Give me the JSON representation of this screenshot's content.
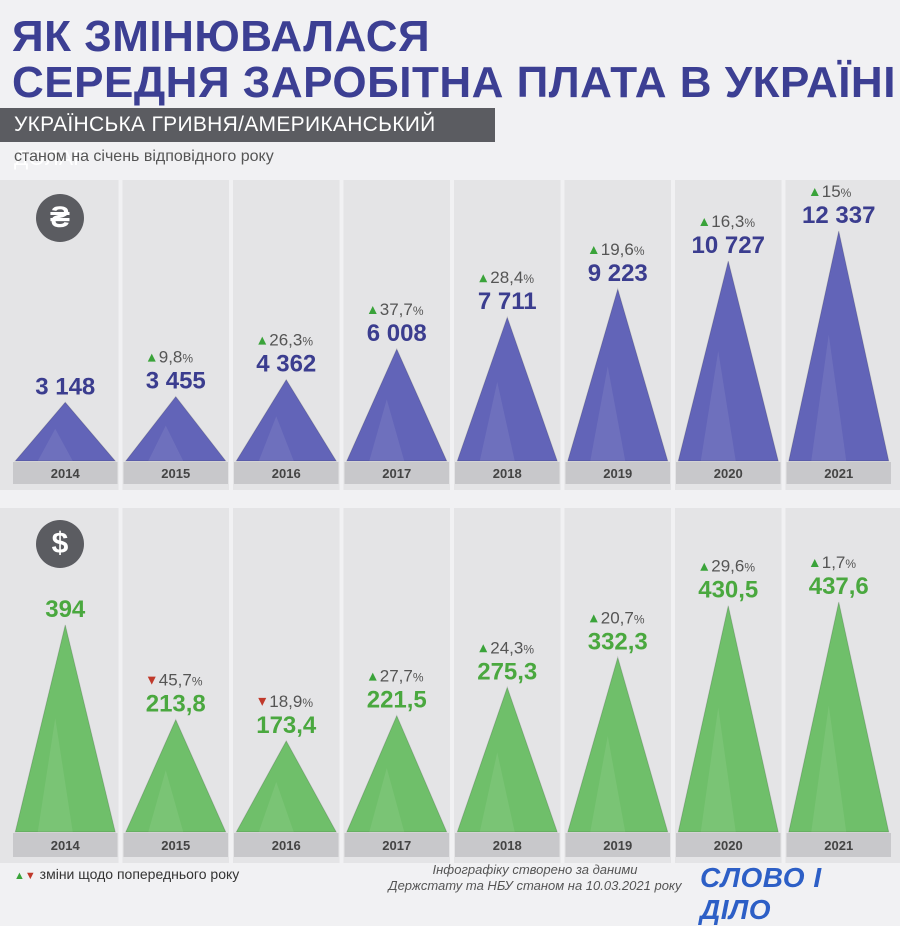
{
  "header": {
    "title_line1": "ЯК ЗМІНЮВАЛАСЯ",
    "title_line2": "СЕРЕДНЯ ЗАРОБІТНА ПЛАТА В УКРАЇНІ",
    "subtitle": "УКРАЇНСЬКА ГРИВНЯ/АМЕРИКАНСЬКИЙ ДОЛАР",
    "note": "станом на січень відповідного року"
  },
  "icons": {
    "uah": "₴",
    "usd": "$"
  },
  "chart_data": [
    {
      "type": "bar",
      "bar_shape": "triangle",
      "currency_symbol": "₴",
      "categories": [
        "2014",
        "2015",
        "2016",
        "2017",
        "2018",
        "2019",
        "2020",
        "2021"
      ],
      "values": [
        3148,
        3455,
        4362,
        6008,
        7711,
        9223,
        10727,
        12337
      ],
      "value_labels": [
        "3 148",
        "3 455",
        "4 362",
        "6 008",
        "7 711",
        "9 223",
        "10 727",
        "12 337"
      ],
      "changes": [
        null,
        {
          "dir": "up",
          "value": "9,8"
        },
        {
          "dir": "up",
          "value": "26,3"
        },
        {
          "dir": "up",
          "value": "37,7"
        },
        {
          "dir": "up",
          "value": "28,4"
        },
        {
          "dir": "up",
          "value": "19,6"
        },
        {
          "dir": "up",
          "value": "16,3"
        },
        {
          "dir": "up",
          "value": "15"
        }
      ],
      "color": "#6264b8",
      "label_color": "#3b3d8f"
    },
    {
      "type": "bar",
      "bar_shape": "triangle",
      "currency_symbol": "$",
      "categories": [
        "2014",
        "2015",
        "2016",
        "2017",
        "2018",
        "2019",
        "2020",
        "2021"
      ],
      "values": [
        394,
        213.8,
        173.4,
        221.5,
        275.3,
        332.3,
        430.5,
        437.6
      ],
      "value_labels": [
        "394",
        "213,8",
        "173,4",
        "221,5",
        "275,3",
        "332,3",
        "430,5",
        "437,6"
      ],
      "changes": [
        null,
        {
          "dir": "down",
          "value": "45,7"
        },
        {
          "dir": "down",
          "value": "18,9"
        },
        {
          "dir": "up",
          "value": "27,7"
        },
        {
          "dir": "up",
          "value": "24,3"
        },
        {
          "dir": "up",
          "value": "20,7"
        },
        {
          "dir": "up",
          "value": "29,6"
        },
        {
          "dir": "up",
          "value": "1,7"
        }
      ],
      "color": "#6fbf6a",
      "label_color": "#4aa83f"
    }
  ],
  "colors": {
    "title": "#3c3f93",
    "up_arrow": "#3aa33a",
    "down_arrow": "#c0392b",
    "year_bar": "#c8c8cb",
    "year_text": "#444444",
    "change_text": "#555555"
  },
  "percent_sign": "%",
  "footer": {
    "legend_label": "зміни щодо попереднього року",
    "source_line1": "Інфографіку створено за даними",
    "source_line2": "Держстату та НБУ станом на 10.03.2021 року",
    "logo": "СЛОВО І ДІЛО"
  }
}
